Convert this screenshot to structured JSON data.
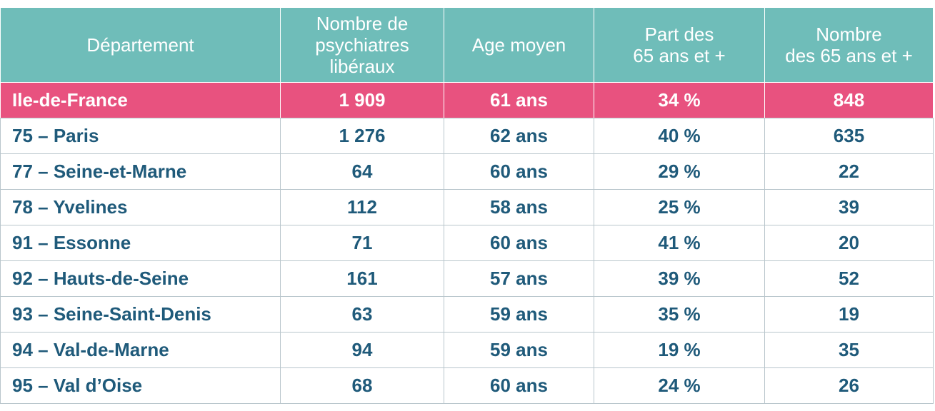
{
  "table": {
    "headers": [
      "Département",
      "Nombre de psychiatres libéraux",
      "Age moyen",
      "Part des 65 ans et +",
      "Nombre des 65 ans et +"
    ],
    "header_lines": [
      [
        "Département"
      ],
      [
        "Nombre de",
        "psychiatres",
        "libéraux"
      ],
      [
        "Age moyen"
      ],
      [
        "Part des",
        "65 ans et +"
      ],
      [
        "Nombre",
        "des 65 ans et +"
      ]
    ],
    "total_row": [
      "Ile-de-France",
      "1 909",
      "61 ans",
      "34 %",
      "848"
    ],
    "rows": [
      [
        "75 – Paris",
        "1 276",
        "62 ans",
        "40 %",
        "635"
      ],
      [
        "77 – Seine-et-Marne",
        "64",
        "60 ans",
        "29 %",
        "22"
      ],
      [
        "78 – Yvelines",
        "112",
        "58 ans",
        "25 %",
        "39"
      ],
      [
        "91 – Essonne",
        "71",
        "60 ans",
        "41 %",
        "20"
      ],
      [
        "92 – Hauts-de-Seine",
        "161",
        "57 ans",
        "39 %",
        "52"
      ],
      [
        "93 – Seine-Saint-Denis",
        "63",
        "59 ans",
        "35 %",
        "19"
      ],
      [
        "94 – Val-de-Marne",
        "94",
        "59 ans",
        "19 %",
        "35"
      ],
      [
        "95 – Val d’Oise",
        "68",
        "60 ans",
        "24 %",
        "26"
      ]
    ]
  },
  "colors": {
    "header_bg": "#6fbdb9",
    "highlight_bg": "#e8527f",
    "text": "#1f5a7a",
    "border": "#b9c6cc"
  }
}
